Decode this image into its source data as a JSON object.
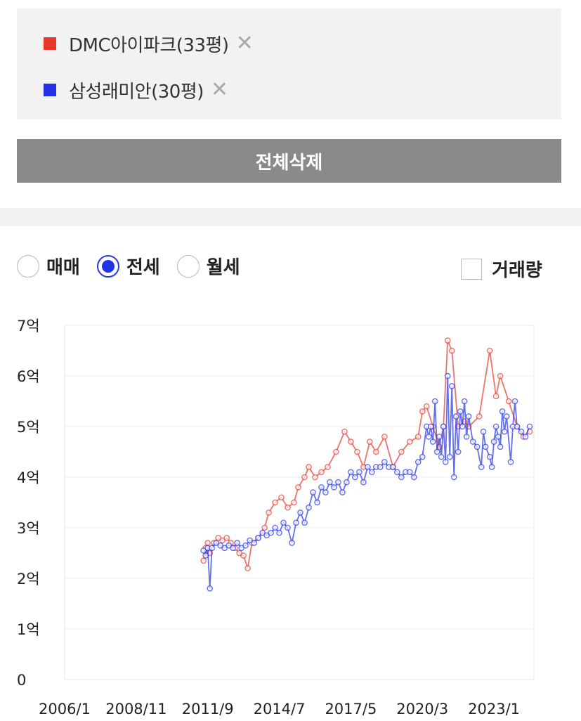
{
  "compare": {
    "items": [
      {
        "label": "DMC아이파크(33평)",
        "color": "#e8382b",
        "remove": "✕"
      },
      {
        "label": "삼성래미안(30평)",
        "color": "#2233e6",
        "remove": "✕"
      }
    ]
  },
  "delete_all_label": "전체삭제",
  "trade_types": {
    "options": [
      "매매",
      "전세",
      "월세"
    ],
    "selected": "전세"
  },
  "volume_label": "거래량",
  "chart_data": {
    "type": "line",
    "ylim": [
      0,
      7
    ],
    "y_ticks": [
      {
        "value": 0,
        "label": "0"
      },
      {
        "value": 1,
        "label": "1억"
      },
      {
        "value": 2,
        "label": "2억"
      },
      {
        "value": 3,
        "label": "3억"
      },
      {
        "value": 4,
        "label": "4억"
      },
      {
        "value": 5,
        "label": "5억"
      },
      {
        "value": 6,
        "label": "6억"
      },
      {
        "value": 7,
        "label": "7억"
      }
    ],
    "x_ticks": [
      "2006/1",
      "2008/11",
      "2011/9",
      "2014/7",
      "2017/5",
      "2020/3",
      "2023/1"
    ],
    "xlim": [
      "2006/1",
      "2024/8"
    ],
    "series": [
      {
        "name": "DMC아이파크(33평)",
        "color": "#e8382b",
        "points": [
          [
            "2011/7",
            2.35
          ],
          [
            "2011/8",
            2.6
          ],
          [
            "2011/9",
            2.7
          ],
          [
            "2011/10",
            2.5
          ],
          [
            "2011/12",
            2.7
          ],
          [
            "2012/2",
            2.8
          ],
          [
            "2012/4",
            2.75
          ],
          [
            "2012/6",
            2.8
          ],
          [
            "2012/8",
            2.7
          ],
          [
            "2012/10",
            2.6
          ],
          [
            "2012/12",
            2.5
          ],
          [
            "2013/2",
            2.45
          ],
          [
            "2013/4",
            2.2
          ],
          [
            "2013/6",
            2.7
          ],
          [
            "2013/9",
            2.8
          ],
          [
            "2013/12",
            3.0
          ],
          [
            "2014/2",
            3.3
          ],
          [
            "2014/5",
            3.5
          ],
          [
            "2014/8",
            3.6
          ],
          [
            "2014/11",
            3.4
          ],
          [
            "2015/2",
            3.5
          ],
          [
            "2015/4",
            3.8
          ],
          [
            "2015/7",
            4.0
          ],
          [
            "2015/9",
            4.2
          ],
          [
            "2015/12",
            4.0
          ],
          [
            "2016/3",
            4.1
          ],
          [
            "2016/6",
            4.2
          ],
          [
            "2016/10",
            4.5
          ],
          [
            "2017/2",
            4.9
          ],
          [
            "2017/5",
            4.7
          ],
          [
            "2017/8",
            4.5
          ],
          [
            "2017/11",
            4.2
          ],
          [
            "2018/2",
            4.7
          ],
          [
            "2018/5",
            4.5
          ],
          [
            "2018/9",
            4.8
          ],
          [
            "2019/1",
            4.2
          ],
          [
            "2019/5",
            4.5
          ],
          [
            "2019/9",
            4.7
          ],
          [
            "2020/1",
            4.8
          ],
          [
            "2020/3",
            5.3
          ],
          [
            "2020/5",
            5.4
          ],
          [
            "2020/8",
            5.0
          ],
          [
            "2020/11",
            4.6
          ],
          [
            "2021/1",
            5.0
          ],
          [
            "2021/3",
            6.7
          ],
          [
            "2021/5",
            6.5
          ],
          [
            "2021/8",
            5.0
          ],
          [
            "2021/11",
            5.1
          ],
          [
            "2022/1",
            5.0
          ],
          [
            "2022/6",
            5.2
          ],
          [
            "2022/11",
            6.5
          ],
          [
            "2023/2",
            5.6
          ],
          [
            "2023/4",
            6.0
          ],
          [
            "2023/8",
            5.5
          ],
          [
            "2023/12",
            5.0
          ],
          [
            "2024/3",
            4.8
          ],
          [
            "2024/6",
            4.9
          ]
        ]
      },
      {
        "name": "삼성래미안(30평)",
        "color": "#2233e6",
        "points": [
          [
            "2011/7",
            2.55
          ],
          [
            "2011/8",
            2.45
          ],
          [
            "2011/9",
            2.6
          ],
          [
            "2011/10",
            1.8
          ],
          [
            "2011/11",
            2.6
          ],
          [
            "2012/1",
            2.7
          ],
          [
            "2012/3",
            2.65
          ],
          [
            "2012/5",
            2.6
          ],
          [
            "2012/7",
            2.65
          ],
          [
            "2012/9",
            2.6
          ],
          [
            "2012/11",
            2.7
          ],
          [
            "2013/1",
            2.6
          ],
          [
            "2013/3",
            2.65
          ],
          [
            "2013/5",
            2.75
          ],
          [
            "2013/7",
            2.7
          ],
          [
            "2013/9",
            2.8
          ],
          [
            "2013/11",
            2.9
          ],
          [
            "2014/1",
            2.85
          ],
          [
            "2014/3",
            2.9
          ],
          [
            "2014/5",
            3.0
          ],
          [
            "2014/7",
            2.9
          ],
          [
            "2014/9",
            3.1
          ],
          [
            "2014/11",
            3.0
          ],
          [
            "2015/1",
            2.7
          ],
          [
            "2015/3",
            3.1
          ],
          [
            "2015/5",
            3.3
          ],
          [
            "2015/7",
            3.1
          ],
          [
            "2015/9",
            3.4
          ],
          [
            "2015/11",
            3.7
          ],
          [
            "2016/1",
            3.5
          ],
          [
            "2016/3",
            3.8
          ],
          [
            "2016/5",
            3.7
          ],
          [
            "2016/7",
            3.9
          ],
          [
            "2016/9",
            3.8
          ],
          [
            "2016/11",
            3.9
          ],
          [
            "2017/1",
            3.7
          ],
          [
            "2017/3",
            3.9
          ],
          [
            "2017/5",
            4.1
          ],
          [
            "2017/7",
            4.0
          ],
          [
            "2017/9",
            4.1
          ],
          [
            "2017/11",
            3.9
          ],
          [
            "2018/1",
            4.2
          ],
          [
            "2018/3",
            4.1
          ],
          [
            "2018/5",
            4.2
          ],
          [
            "2018/7",
            4.2
          ],
          [
            "2018/9",
            4.3
          ],
          [
            "2018/11",
            4.2
          ],
          [
            "2019/1",
            4.2
          ],
          [
            "2019/3",
            4.1
          ],
          [
            "2019/5",
            4.0
          ],
          [
            "2019/7",
            4.1
          ],
          [
            "2019/9",
            4.1
          ],
          [
            "2019/11",
            4.0
          ],
          [
            "2020/1",
            4.3
          ],
          [
            "2020/3",
            4.4
          ],
          [
            "2020/5",
            5.0
          ],
          [
            "2020/6",
            4.8
          ],
          [
            "2020/7",
            5.0
          ],
          [
            "2020/8",
            4.7
          ],
          [
            "2020/9",
            5.5
          ],
          [
            "2020/10",
            4.5
          ],
          [
            "2020/11",
            4.8
          ],
          [
            "2020/12",
            4.4
          ],
          [
            "2021/1",
            5.0
          ],
          [
            "2021/2",
            4.3
          ],
          [
            "2021/3",
            6.0
          ],
          [
            "2021/4",
            4.4
          ],
          [
            "2021/5",
            5.8
          ],
          [
            "2021/6",
            4.0
          ],
          [
            "2021/7",
            5.2
          ],
          [
            "2021/8",
            4.5
          ],
          [
            "2021/9",
            5.3
          ],
          [
            "2021/10",
            5.0
          ],
          [
            "2021/11",
            5.5
          ],
          [
            "2021/12",
            4.8
          ],
          [
            "2022/1",
            5.2
          ],
          [
            "2022/3",
            4.7
          ],
          [
            "2022/5",
            4.6
          ],
          [
            "2022/7",
            4.2
          ],
          [
            "2022/8",
            4.9
          ],
          [
            "2022/9",
            4.6
          ],
          [
            "2022/11",
            4.4
          ],
          [
            "2022/12",
            4.2
          ],
          [
            "2023/1",
            4.7
          ],
          [
            "2023/2",
            5.0
          ],
          [
            "2023/3",
            4.8
          ],
          [
            "2023/4",
            4.6
          ],
          [
            "2023/5",
            5.3
          ],
          [
            "2023/6",
            4.9
          ],
          [
            "2023/7",
            5.2
          ],
          [
            "2023/9",
            4.3
          ],
          [
            "2023/10",
            5.0
          ],
          [
            "2023/11",
            5.5
          ],
          [
            "2023/12",
            5.0
          ],
          [
            "2024/2",
            4.9
          ],
          [
            "2024/4",
            4.8
          ],
          [
            "2024/6",
            5.0
          ]
        ]
      }
    ]
  }
}
